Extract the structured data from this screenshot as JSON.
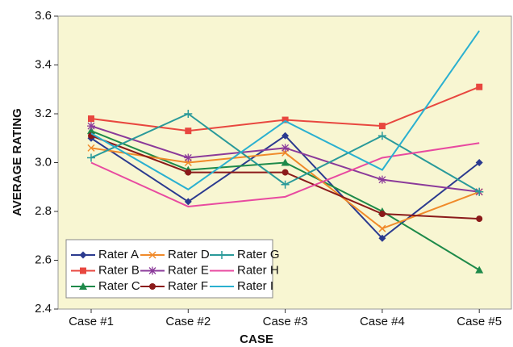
{
  "chart_data": {
    "type": "line",
    "xlabel": "CASE",
    "ylabel": "AVERAGE RATING",
    "categories": [
      "Case #1",
      "Case #2",
      "Case #3",
      "Case #4",
      "Case #5"
    ],
    "ylim": [
      2.4,
      3.6
    ],
    "yticks": [
      2.4,
      2.6,
      2.8,
      {
        "value": 3,
        "label": "3.0"
      },
      3.2,
      3.4,
      3.6
    ],
    "grid": false,
    "legend": "lower left",
    "series": [
      {
        "name": "Rater A",
        "color": "#2b3a8f",
        "marker": "diamond",
        "values": [
          3.1,
          2.84,
          3.11,
          2.69,
          3.0
        ]
      },
      {
        "name": "Rater B",
        "color": "#e8473f",
        "marker": "square",
        "values": [
          3.18,
          3.13,
          3.175,
          3.15,
          3.31
        ]
      },
      {
        "name": "Rater C",
        "color": "#1e8a4a",
        "marker": "triangle",
        "values": [
          3.13,
          2.97,
          3.0,
          2.8,
          2.56
        ]
      },
      {
        "name": "Rater D",
        "color": "#f08a2a",
        "marker": "x",
        "values": [
          3.06,
          3.0,
          3.04,
          2.73,
          2.88
        ]
      },
      {
        "name": "Rater E",
        "color": "#8b3a9a",
        "marker": "star",
        "values": [
          3.15,
          3.02,
          3.06,
          2.93,
          2.88
        ]
      },
      {
        "name": "Rater F",
        "color": "#8b1a1a",
        "marker": "circle",
        "values": [
          3.11,
          2.96,
          2.96,
          2.79,
          2.77
        ]
      },
      {
        "name": "Rater G",
        "color": "#2a9a9a",
        "marker": "plus",
        "values": [
          3.02,
          3.2,
          2.91,
          3.11,
          2.88
        ]
      },
      {
        "name": "Rater H",
        "color": "#e84aa0",
        "marker": "none",
        "values": [
          3.0,
          2.82,
          2.86,
          3.02,
          3.08
        ]
      },
      {
        "name": "Rater I",
        "color": "#2ab0d0",
        "marker": "none",
        "values": [
          3.12,
          2.89,
          3.17,
          2.97,
          3.54
        ]
      }
    ]
  }
}
